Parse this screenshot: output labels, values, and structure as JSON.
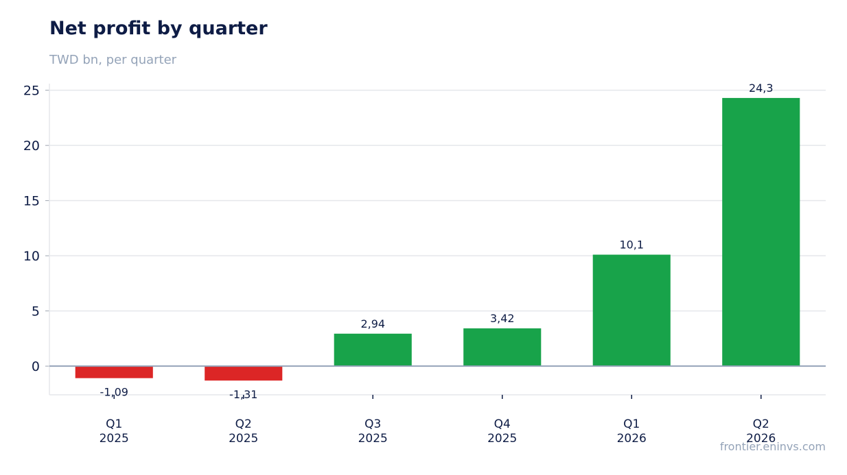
{
  "header": {
    "title": "Net profit by quarter",
    "subtitle": "TWD bn, per quarter"
  },
  "footer": {
    "source": "frontier.eninvs.com"
  },
  "colors": {
    "positive": "#18a34a",
    "negative": "#dc2626",
    "grid": "#e5e7eb",
    "zero_line": "#94a3b8",
    "text": "#0e1c45"
  },
  "chart_data": {
    "type": "bar",
    "title": "Net profit by quarter",
    "subtitle": "TWD bn, per quarter",
    "categories": [
      [
        "Q1",
        "2025"
      ],
      [
        "Q2",
        "2025"
      ],
      [
        "Q3",
        "2025"
      ],
      [
        "Q4",
        "2025"
      ],
      [
        "Q1",
        "2026"
      ],
      [
        "Q2",
        "2026"
      ]
    ],
    "values": [
      -1.09,
      -1.31,
      2.94,
      3.42,
      10.1,
      24.3
    ],
    "value_labels": [
      "-1,09",
      "-1,31",
      "2,94",
      "3,42",
      "10,1",
      "24,3"
    ],
    "ylim": [
      -2.6,
      25.6
    ],
    "yticks": [
      0,
      5,
      10,
      15,
      20,
      25
    ],
    "grid": true,
    "legend": "none"
  }
}
